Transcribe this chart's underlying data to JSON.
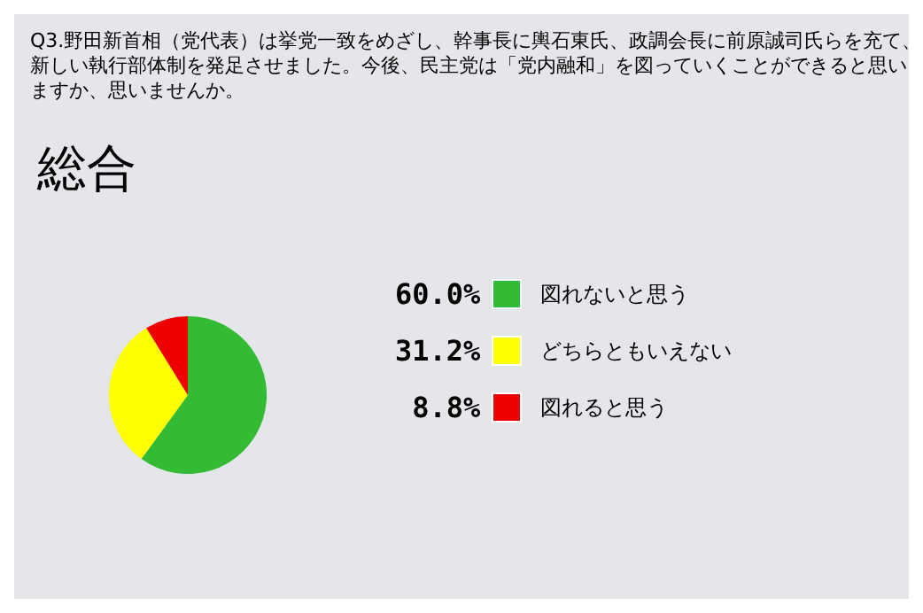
{
  "chart_data": {
    "type": "pie",
    "title": "Q3.野田新首相（党代表）は挙党一致をめざし、幹事長に輿石東氏、政調会長に前原誠司氏らを充て、新しい執行部体制を発足させました。今後、民主党は「党内融和」を図っていくことができると思いますか、思いませんか。",
    "subtitle": "総合",
    "categories": [
      "図れないと思う",
      "どちらともいえない",
      "図れると思う"
    ],
    "values": [
      60.0,
      31.2,
      8.8
    ],
    "value_labels": [
      "60.0%",
      "31.2%",
      "8.8%"
    ],
    "colors": [
      "#33bb33",
      "#ffff00",
      "#ee0000"
    ],
    "legend": "right"
  }
}
